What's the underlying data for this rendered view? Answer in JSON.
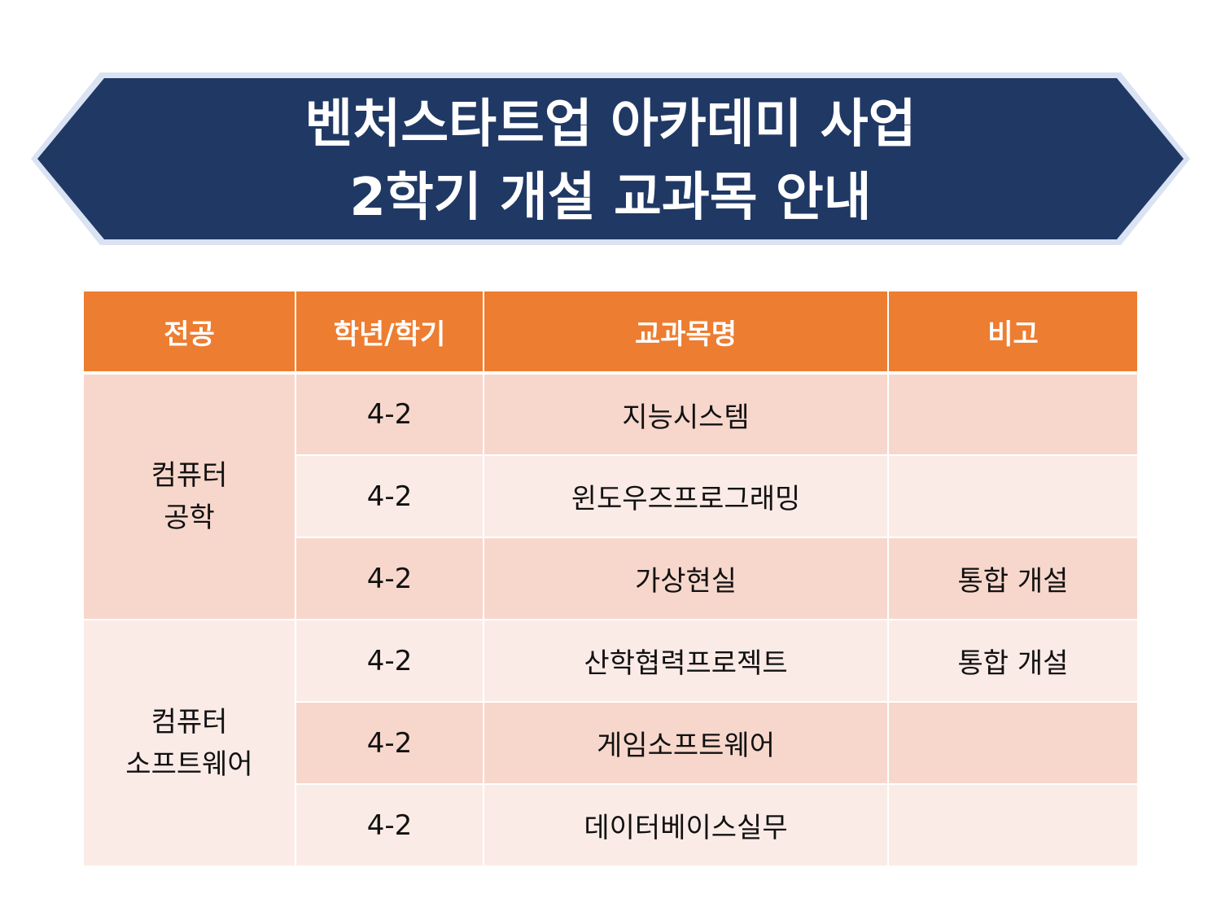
{
  "title": {
    "line1": "벤처스타트업 아카데미 사업",
    "line2": "2학기 개설 교과목 안내"
  },
  "colors": {
    "banner_fill": "#203864",
    "banner_border": "#dae3f3",
    "header_fill": "#ed7d31",
    "row_dark": "#f7d7cc",
    "row_light": "#fbebe6"
  },
  "table": {
    "headers": [
      "전공",
      "학년/학기",
      "교과목명",
      "비고"
    ],
    "majors": [
      {
        "line1": "컴퓨터",
        "line2": "공학"
      },
      {
        "line1": "컴퓨터",
        "line2": "소프트웨어"
      }
    ],
    "rows": [
      {
        "grade": "4-2",
        "course": "지능시스템",
        "note": ""
      },
      {
        "grade": "4-2",
        "course": "윈도우즈프로그래밍",
        "note": ""
      },
      {
        "grade": "4-2",
        "course": "가상현실",
        "note": "통합 개설"
      },
      {
        "grade": "4-2",
        "course": "산학협력프로젝트",
        "note": "통합 개설"
      },
      {
        "grade": "4-2",
        "course": "게임소프트웨어",
        "note": ""
      },
      {
        "grade": "4-2",
        "course": "데이터베이스실무",
        "note": ""
      }
    ]
  }
}
